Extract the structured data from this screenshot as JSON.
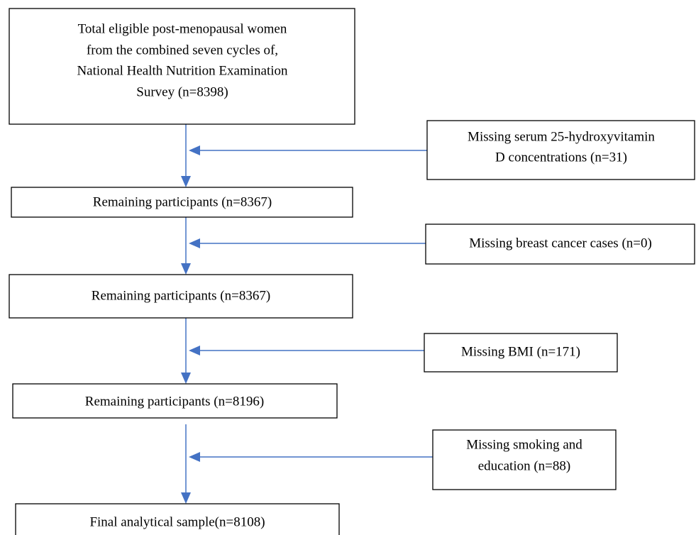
{
  "nodes": [
    {
      "lines": [
        "Total eligible post-menopausal women",
        "from the combined seven cycles of,",
        "National Health Nutrition Examination",
        "Survey (n=8398)"
      ]
    },
    {
      "lines": [
        "Missing serum 25-hydroxyvitamin",
        "D concentrations (n=31)"
      ]
    },
    {
      "lines": [
        "Remaining participants (n=8367)"
      ]
    },
    {
      "lines": [
        "Missing breast cancer cases (n=0)"
      ]
    },
    {
      "lines": [
        "Remaining participants (n=8367)"
      ]
    },
    {
      "lines": [
        "Missing BMI (n=171)"
      ]
    },
    {
      "lines": [
        "Remaining participants (n=8196)"
      ]
    },
    {
      "lines": [
        "Missing smoking and",
        "education (n=88)"
      ]
    },
    {
      "lines": [
        "Final analytical sample(n=8108)"
      ]
    }
  ]
}
